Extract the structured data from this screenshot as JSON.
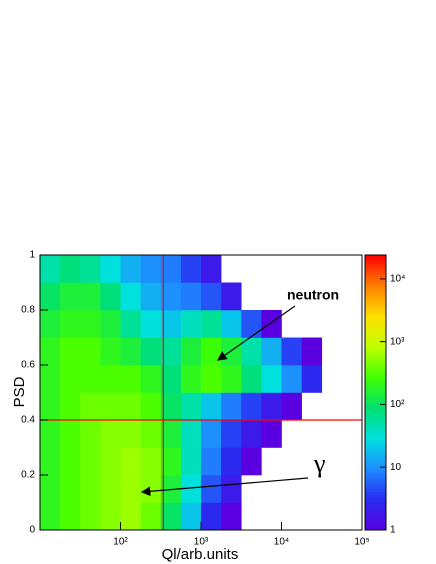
{
  "chart_data": {
    "type": "heatmap",
    "x_label": "Ql/arb.units",
    "y_label": "PSD",
    "x_log": true,
    "xlim": [
      10,
      100000
    ],
    "ylim": [
      0,
      1
    ],
    "zlim": [
      1,
      24000
    ],
    "z_log": true,
    "xticks": [
      {
        "value": 100,
        "label": "10²"
      },
      {
        "value": 1000,
        "label": "10³"
      },
      {
        "value": 10000,
        "label": "10⁴"
      },
      {
        "value": 100000,
        "label": "10⁵"
      }
    ],
    "yticks": [
      0,
      0.2,
      0.4,
      0.6,
      0.8,
      1
    ],
    "zticks": [
      1,
      10,
      {
        "value": 100,
        "label": "10²"
      },
      {
        "value": 1000,
        "label": "10³"
      },
      {
        "value": 10000,
        "label": "10⁴"
      }
    ],
    "x_bins": [
      10,
      17.78,
      31.62,
      56.23,
      100,
      177.8,
      316.2,
      562.3,
      1000,
      1778,
      3162,
      5623,
      10000,
      17783,
      31623,
      56234,
      100000
    ],
    "y_bins": [
      0,
      0.1,
      0.2,
      0.3,
      0.4,
      0.5,
      0.6,
      0.7,
      0.8,
      0.9,
      1
    ],
    "z": [
      [
        200,
        300,
        400,
        500,
        600,
        400,
        100,
        20,
        3,
        1,
        null,
        null,
        null,
        null,
        null,
        null
      ],
      [
        200,
        300,
        400,
        500,
        600,
        500,
        150,
        30,
        5,
        2,
        null,
        null,
        null,
        null,
        null,
        null
      ],
      [
        200,
        300,
        400,
        500,
        600,
        500,
        200,
        40,
        8,
        3,
        1,
        null,
        null,
        null,
        null,
        null
      ],
      [
        200,
        300,
        400,
        500,
        500,
        400,
        150,
        40,
        10,
        4,
        2,
        1,
        null,
        null,
        null,
        null
      ],
      [
        200,
        300,
        400,
        400,
        400,
        300,
        100,
        50,
        20,
        8,
        4,
        2,
        1,
        null,
        null,
        null
      ],
      [
        200,
        300,
        300,
        300,
        300,
        200,
        80,
        200,
        300,
        200,
        80,
        30,
        10,
        3,
        null,
        null
      ],
      [
        200,
        300,
        300,
        200,
        150,
        80,
        60,
        150,
        250,
        150,
        50,
        15,
        4,
        1,
        null,
        null
      ],
      [
        150,
        200,
        200,
        150,
        60,
        30,
        20,
        40,
        60,
        20,
        5,
        1,
        null,
        null,
        null,
        null
      ],
      [
        100,
        150,
        150,
        80,
        30,
        15,
        10,
        8,
        5,
        2,
        null,
        null,
        null,
        null,
        null,
        null
      ],
      [
        50,
        80,
        60,
        30,
        15,
        10,
        8,
        4,
        2,
        null,
        null,
        null,
        null,
        null,
        null,
        null
      ]
    ],
    "palette": [
      "#5a00e0",
      "#2a2af0",
      "#1e8cff",
      "#00e0e0",
      "#00e070",
      "#40ff00",
      "#c0ff00",
      "#ffe000",
      "#ff8000",
      "#ff0000"
    ],
    "cut_lines": {
      "x": 340,
      "y": 0.4,
      "color": "#ff0000"
    },
    "annotations": [
      {
        "text": "neutron"
      },
      {
        "text": "γ"
      }
    ]
  }
}
